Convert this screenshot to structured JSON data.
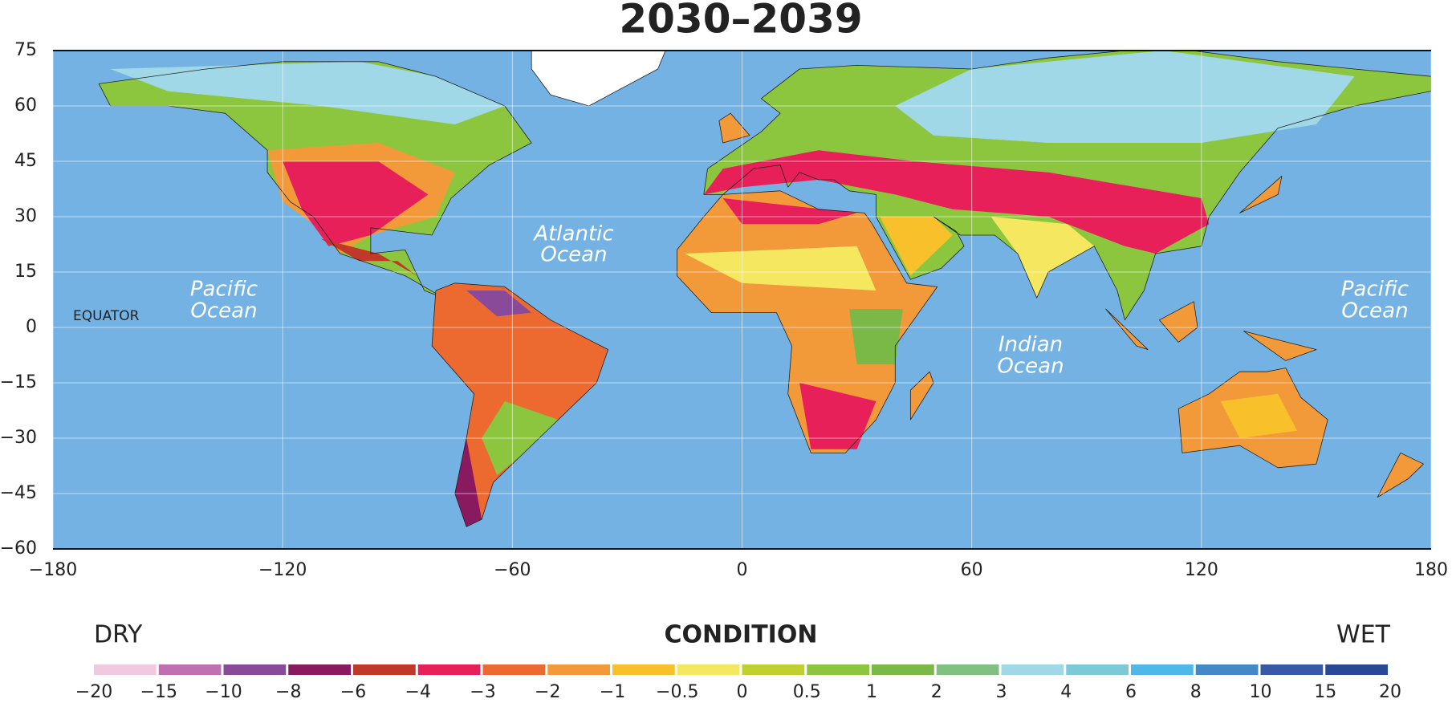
{
  "chart_data": {
    "type": "map",
    "title": "2030–2039",
    "xlim": [
      -180,
      180
    ],
    "ylim": [
      -60,
      75
    ],
    "xticks": [
      {
        "value": -180,
        "label": "−180"
      },
      {
        "value": -120,
        "label": "−120"
      },
      {
        "value": -60,
        "label": "−60"
      },
      0,
      60,
      120,
      180
    ],
    "yticks": [
      75,
      60,
      45,
      30,
      15,
      0,
      {
        "value": -15,
        "label": "−15"
      },
      {
        "value": -30,
        "label": "−30"
      },
      {
        "value": -45,
        "label": "−45"
      },
      {
        "value": -60,
        "label": "−60"
      }
    ],
    "grid": true,
    "ocean_color": "#73b2e2",
    "annotations": [
      [
        "Pacific",
        "Ocean"
      ],
      [
        "Atlantic",
        "Ocean"
      ],
      [
        "Indian",
        "Ocean"
      ],
      [
        "Pacific",
        "Ocean"
      ],
      [
        "EQUATOR"
      ]
    ],
    "legend": {
      "left": "DRY",
      "title": "CONDITION",
      "right": "WET",
      "ticks": [
        {
          "value": -20,
          "label": "−20"
        },
        {
          "value": -15,
          "label": "−15"
        },
        {
          "value": -10,
          "label": "−10"
        },
        {
          "value": -8,
          "label": "−8"
        },
        {
          "value": -6,
          "label": "−6"
        },
        {
          "value": -4,
          "label": "−4"
        },
        {
          "value": -3,
          "label": "−3"
        },
        {
          "value": -2,
          "label": "−2"
        },
        {
          "value": -1,
          "label": "−1"
        },
        {
          "value": -0.5,
          "label": "−0.5"
        },
        0,
        0.5,
        1,
        2,
        3,
        4,
        6,
        8,
        10,
        15,
        20
      ],
      "colors": [
        "#f0c8e0",
        "#c070b0",
        "#8a4a9a",
        "#8a1a60",
        "#c03828",
        "#e8205a",
        "#ec6a30",
        "#f29a3a",
        "#f8c02a",
        "#f5e860",
        "#c0d030",
        "#8cc63f",
        "#7ab848",
        "#80c080",
        "#a0d8e8",
        "#7ccad8",
        "#50b8e8",
        "#4488c8",
        "#3858a8",
        "#2a4898"
      ]
    }
  }
}
